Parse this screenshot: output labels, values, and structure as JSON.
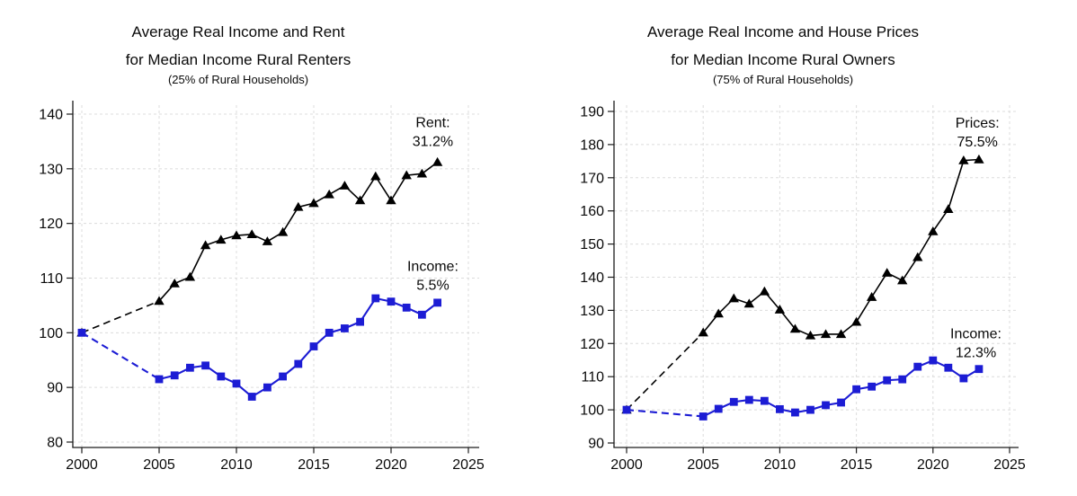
{
  "chart_data": [
    {
      "type": "line",
      "title": "Average Real Income and Rent",
      "title_line2": "for Median Income Rural Renters",
      "subtitle": "(25% of Rural Households)",
      "xlabel": "",
      "ylabel": "",
      "xlim": [
        2000,
        2025
      ],
      "ylim": [
        80,
        140
      ],
      "xticks": [
        2000,
        2005,
        2010,
        2015,
        2020,
        2025
      ],
      "yticks": [
        80,
        90,
        100,
        110,
        120,
        130,
        140
      ],
      "grid": true,
      "gap_note": "2000 to 2005 segment drawn dashed (no annual data 2001-2004)",
      "x": [
        2000,
        2005,
        2006,
        2007,
        2008,
        2009,
        2010,
        2011,
        2012,
        2013,
        2014,
        2015,
        2016,
        2017,
        2018,
        2019,
        2020,
        2021,
        2022,
        2023
      ],
      "series": [
        {
          "name": "Rent",
          "color": "#000000",
          "marker": "triangle",
          "line_width": 1.6,
          "values": [
            100,
            105.8,
            109,
            110.2,
            116,
            117,
            117.8,
            118,
            116.7,
            118.4,
            123,
            123.7,
            125.3,
            126.9,
            124.2,
            128.6,
            124.2,
            128.8,
            129.1,
            131.2
          ],
          "end_label": {
            "lines": [
              "Rent:",
              "31.2%"
            ],
            "x": 2022.7,
            "y": 138.5
          }
        },
        {
          "name": "Income",
          "color": "#1c1cd4",
          "marker": "square",
          "line_width": 2.1,
          "values": [
            100,
            91.5,
            92.2,
            93.6,
            94,
            92,
            90.7,
            88.3,
            90,
            92,
            94.3,
            97.5,
            100,
            100.8,
            102,
            106.3,
            105.7,
            104.6,
            103.3,
            105.5
          ],
          "end_label": {
            "lines": [
              "Income:",
              "5.5%"
            ],
            "x": 2022.7,
            "y": 112.2
          }
        }
      ]
    },
    {
      "type": "line",
      "title": "Average Real Income and House Prices",
      "title_line2": "for Median Income Rural Owners",
      "subtitle": "(75% of Rural Households)",
      "xlabel": "",
      "ylabel": "",
      "xlim": [
        2000,
        2025
      ],
      "ylim": [
        90,
        190
      ],
      "xticks": [
        2000,
        2005,
        2010,
        2015,
        2020,
        2025
      ],
      "yticks": [
        90,
        100,
        110,
        120,
        130,
        140,
        150,
        160,
        170,
        180,
        190
      ],
      "grid": true,
      "gap_note": "2000 to 2005 segment drawn dashed (no annual data 2001-2004)",
      "x": [
        2000,
        2005,
        2006,
        2007,
        2008,
        2009,
        2010,
        2011,
        2012,
        2013,
        2014,
        2015,
        2016,
        2017,
        2018,
        2019,
        2020,
        2021,
        2022,
        2023
      ],
      "series": [
        {
          "name": "Prices",
          "color": "#000000",
          "marker": "triangle",
          "line_width": 1.6,
          "values": [
            100,
            123.3,
            129,
            133.6,
            132,
            135.7,
            130.2,
            124.4,
            122.4,
            122.8,
            122.8,
            126.5,
            134,
            141.3,
            139,
            146,
            153.8,
            160.5,
            175.2,
            175.5
          ],
          "end_label": {
            "lines": [
              "Prices:",
              "75.5%"
            ],
            "x": 2022.9,
            "y": 186.6
          }
        },
        {
          "name": "Income",
          "color": "#1c1cd4",
          "marker": "square",
          "line_width": 2.1,
          "values": [
            100,
            98,
            100.3,
            102.4,
            103,
            102.7,
            100.2,
            99.2,
            100,
            101.4,
            102.2,
            106.2,
            107,
            108.9,
            109.2,
            113,
            114.9,
            112.7,
            109.5,
            112.3
          ],
          "end_label": {
            "lines": [
              "Income:",
              "12.3%"
            ],
            "x": 2022.8,
            "y": 123.1
          }
        }
      ]
    }
  ],
  "style": {
    "grid_color": "#dcdcdc",
    "axis_color": "#1c1c1c",
    "text_color": "#0a0a0a"
  }
}
